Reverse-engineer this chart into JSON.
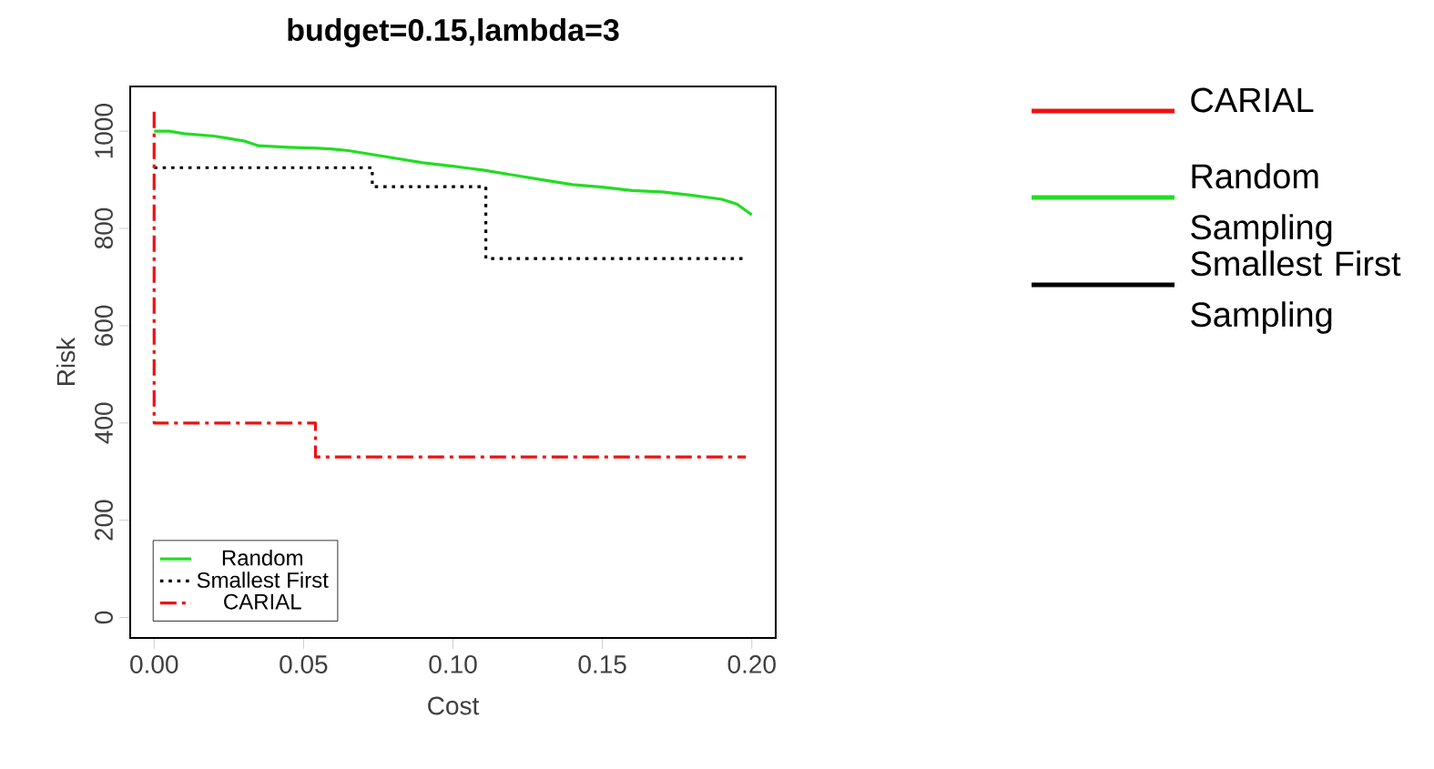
{
  "chart_data": [
    {
      "type": "line",
      "title": "budget=0.15,lambda=3",
      "xlabel": "Cost",
      "ylabel": "Risk",
      "xlim": [
        -0.008,
        0.208
      ],
      "ylim": [
        -42,
        1092
      ],
      "xticks": [
        {
          "value": 0,
          "label": "0.00"
        },
        {
          "value": 0.05,
          "label": "0.05"
        },
        {
          "value": 0.1,
          "label": "0.10"
        },
        {
          "value": 0.15,
          "label": "0.15"
        },
        {
          "value": 0.2,
          "label": "0.20"
        }
      ],
      "yticks": [
        0,
        200,
        400,
        600,
        800,
        1000
      ],
      "grid": false,
      "legend": "bottom left",
      "annotations": [
        "CARIAL",
        "Random Sampling",
        "Smallest First Sampling"
      ],
      "series": [
        {
          "name": "Random",
          "color": "#22dd22",
          "line_style": "solid",
          "x": [
            0,
            0.005,
            0.01,
            0.02,
            0.025,
            0.03,
            0.035,
            0.045,
            0.055,
            0.06,
            0.065,
            0.07,
            0.08,
            0.09,
            0.1,
            0.11,
            0.12,
            0.13,
            0.14,
            0.15,
            0.16,
            0.17,
            0.18,
            0.19,
            0.195,
            0.2
          ],
          "values": [
            1000,
            1000,
            995,
            990,
            985,
            980,
            970,
            967,
            965,
            963,
            960,
            955,
            945,
            935,
            928,
            920,
            910,
            900,
            890,
            885,
            878,
            875,
            868,
            860,
            850,
            828
          ]
        },
        {
          "name": "Smallest First",
          "type": "step",
          "color": "#000000",
          "line_style": "dotted",
          "x": [
            0,
            0.073,
            0.111,
            0.198
          ],
          "values": [
            925,
            886,
            738,
            738
          ]
        },
        {
          "name": "CARIAL",
          "type": "step",
          "color": "#ee1111",
          "line_style": "dashed",
          "x": [
            0,
            0,
            0.054,
            0.198
          ],
          "values": [
            1040,
            400,
            330,
            330
          ]
        }
      ]
    }
  ]
}
